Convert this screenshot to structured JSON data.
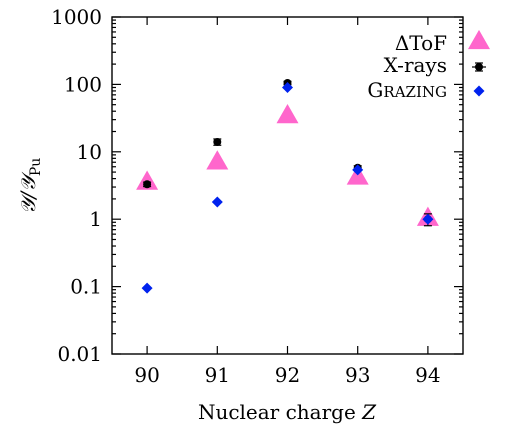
{
  "chart_data": {
    "type": "scatter",
    "xlabel": "Nuclear charge Z",
    "xlabel_parts": {
      "text": "Nuclear charge ",
      "var": "Z"
    },
    "ylabel": "Y/Y_Pu",
    "ylabel_parts": {
      "main": "𝒴/𝒴",
      "sub": "Pu"
    },
    "x_ticks": [
      "90",
      "91",
      "92",
      "93",
      "94"
    ],
    "x": [
      90,
      91,
      92,
      93,
      94
    ],
    "xlim": [
      89.5,
      94.5
    ],
    "y_scale": "log",
    "ylim": [
      0.01,
      1000
    ],
    "y_ticks": [
      "0.01",
      "0.1",
      "1",
      "10",
      "100",
      "1000"
    ],
    "y_tick_values": [
      0.01,
      0.1,
      1,
      10,
      100,
      1000
    ],
    "grid": false,
    "legend_position": "top-right",
    "series": [
      {
        "name": "ΔToF",
        "marker": "triangle",
        "color": "#ff66cc",
        "values": [
          3.6,
          7.2,
          35,
          4.3,
          1.05
        ]
      },
      {
        "name": "X-rays",
        "marker": "circle",
        "color": "#000000",
        "errorbars": true,
        "values": [
          3.3,
          14,
          105,
          5.8,
          1.0
        ],
        "errors": [
          0.25,
          1.5,
          6,
          0.4,
          0.2
        ]
      },
      {
        "name": "Grazing",
        "name_parts": {
          "lead": "G",
          "rest": "RAZING"
        },
        "marker": "diamond",
        "color": "#0022ee",
        "values": [
          0.095,
          1.8,
          90,
          5.4,
          1.0
        ]
      }
    ]
  }
}
